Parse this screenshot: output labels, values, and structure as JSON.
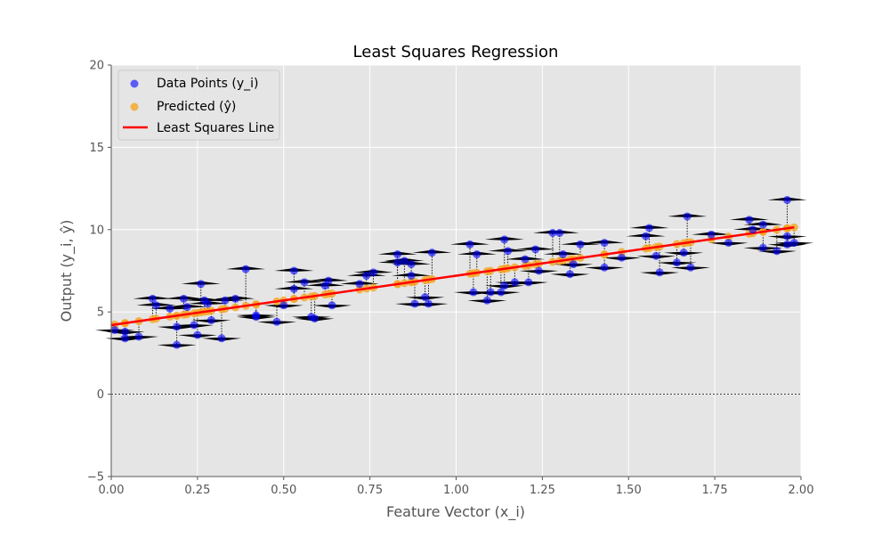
{
  "chart_data": {
    "type": "scatter",
    "title": "Least Squares Regression",
    "xlabel": "Feature Vector (x_i)",
    "ylabel": "Output (y_i, ŷ)",
    "xlim": [
      0.0,
      2.0
    ],
    "ylim": [
      -5,
      20
    ],
    "xticks": [
      0.0,
      0.25,
      0.5,
      0.75,
      1.0,
      1.25,
      1.5,
      1.75,
      2.0
    ],
    "xtick_labels": [
      "0.00",
      "0.25",
      "0.50",
      "0.75",
      "1.00",
      "1.25",
      "1.50",
      "1.75",
      "2.00"
    ],
    "yticks": [
      -5,
      0,
      5,
      10,
      15,
      20
    ],
    "ytick_labels": [
      "−5",
      "0",
      "5",
      "10",
      "15",
      "20"
    ],
    "grid": true,
    "legend_position": "top-left",
    "zero_line": 0,
    "line": {
      "intercept": 4.2,
      "slope": 3.0
    },
    "series": [
      {
        "name": "Data Points (y_i)",
        "kind": "scatter",
        "color": "#0000ff",
        "x": [
          0.01,
          0.04,
          0.04,
          0.08,
          0.12,
          0.13,
          0.17,
          0.19,
          0.19,
          0.21,
          0.22,
          0.24,
          0.25,
          0.26,
          0.27,
          0.28,
          0.29,
          0.32,
          0.33,
          0.36,
          0.39,
          0.42,
          0.42,
          0.48,
          0.5,
          0.53,
          0.53,
          0.56,
          0.58,
          0.59,
          0.62,
          0.63,
          0.64,
          0.72,
          0.74,
          0.76,
          0.83,
          0.83,
          0.85,
          0.87,
          0.87,
          0.88,
          0.91,
          0.92,
          0.93,
          1.04,
          1.05,
          1.06,
          1.09,
          1.1,
          1.13,
          1.14,
          1.14,
          1.15,
          1.17,
          1.2,
          1.21,
          1.23,
          1.24,
          1.28,
          1.3,
          1.31,
          1.33,
          1.34,
          1.36,
          1.43,
          1.43,
          1.48,
          1.55,
          1.56,
          1.58,
          1.59,
          1.64,
          1.66,
          1.67,
          1.68,
          1.74,
          1.79,
          1.85,
          1.86,
          1.89,
          1.89,
          1.93,
          1.96,
          1.96,
          1.96,
          1.98
        ],
        "y": [
          3.9,
          3.8,
          3.4,
          3.5,
          5.8,
          5.4,
          5.2,
          4.1,
          3.0,
          5.8,
          5.3,
          4.2,
          3.6,
          6.7,
          5.7,
          5.5,
          4.5,
          3.4,
          5.7,
          5.8,
          7.6,
          4.7,
          4.8,
          4.4,
          5.4,
          7.5,
          6.4,
          6.8,
          4.7,
          4.6,
          6.6,
          6.9,
          5.4,
          6.7,
          7.2,
          7.4,
          8.5,
          8.0,
          8.1,
          7.9,
          7.2,
          5.5,
          5.9,
          5.5,
          8.6,
          9.1,
          6.2,
          8.5,
          5.7,
          6.2,
          6.2,
          9.4,
          6.6,
          8.7,
          6.8,
          8.2,
          6.8,
          8.8,
          7.5,
          9.8,
          9.8,
          8.5,
          7.3,
          7.9,
          9.1,
          9.2,
          7.7,
          8.3,
          9.6,
          10.1,
          8.4,
          7.4,
          8.0,
          8.6,
          10.8,
          7.7,
          9.7,
          9.2,
          10.6,
          10.0,
          10.3,
          8.9,
          8.7,
          11.8,
          9.1,
          9.6,
          9.2
        ]
      },
      {
        "name": "Predicted (ŷ)",
        "kind": "scatter",
        "color": "#f5a623"
      },
      {
        "name": "Least Squares Line",
        "kind": "line",
        "color": "#ff0000"
      }
    ],
    "legend": [
      {
        "label": "Data Points (y_i)",
        "marker": "dot",
        "color": "#0000ff"
      },
      {
        "label": "Predicted (ŷ)",
        "marker": "dot",
        "color": "#f5a623"
      },
      {
        "label": "Least Squares Line",
        "marker": "line",
        "color": "#ff0000"
      }
    ]
  }
}
